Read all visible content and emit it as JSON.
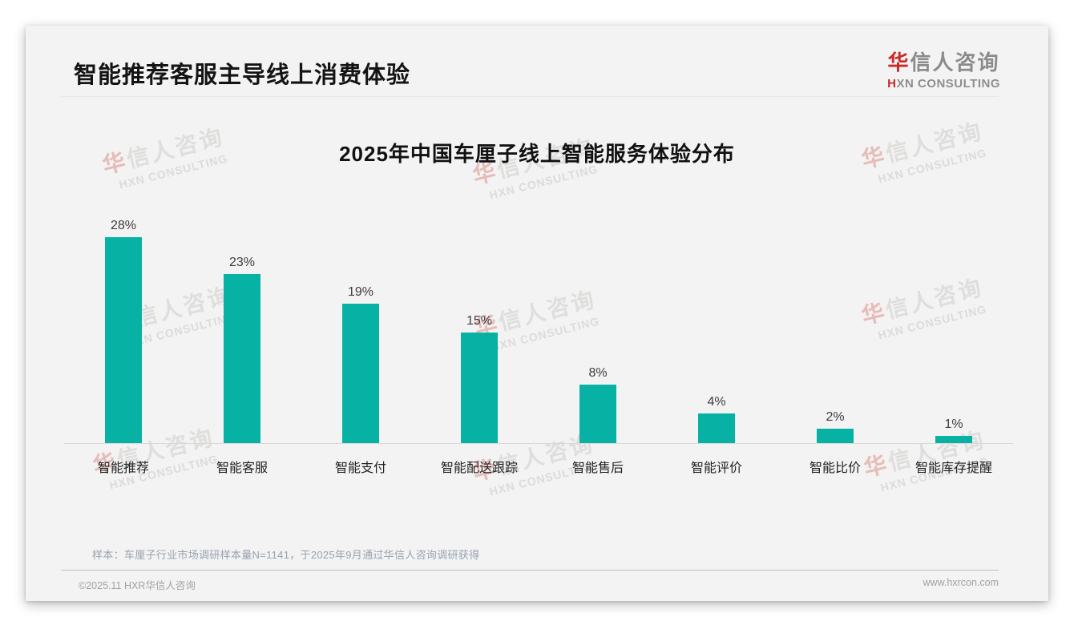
{
  "page": {
    "header_title": "智能推荐客服主导线上消费体验",
    "footnote": "样本：车厘子行业市场调研样本量N=1141，于2025年9月通过华信人咨询调研获得",
    "footer_left": "©2025.11 HXR华信人咨询",
    "footer_right": "www.hxrcon.com"
  },
  "logo": {
    "cn_red": "华",
    "cn_rest": "信人咨询",
    "en_red": "H",
    "en_rest": "XN CONSULTING"
  },
  "watermark": {
    "line1_red": "华",
    "line1_rest": "信人咨询",
    "line2": "HXN CONSULTING"
  },
  "chart_data": {
    "type": "bar",
    "title": "2025年中国车厘子线上智能服务体验分布",
    "categories": [
      "智能推荐",
      "智能客服",
      "智能支付",
      "智能配送跟踪",
      "智能售后",
      "智能评价",
      "智能比价",
      "智能库存提醒"
    ],
    "values": [
      28,
      23,
      19,
      15,
      8,
      4,
      2,
      1
    ],
    "value_labels": [
      "28%",
      "23%",
      "19%",
      "15%",
      "8%",
      "4%",
      "2%",
      "1%"
    ],
    "unit": "%",
    "bar_color": "#07b1a4",
    "xlabel": "",
    "ylabel": "",
    "ylim": [
      0,
      30
    ],
    "grid": false,
    "legend": null
  }
}
